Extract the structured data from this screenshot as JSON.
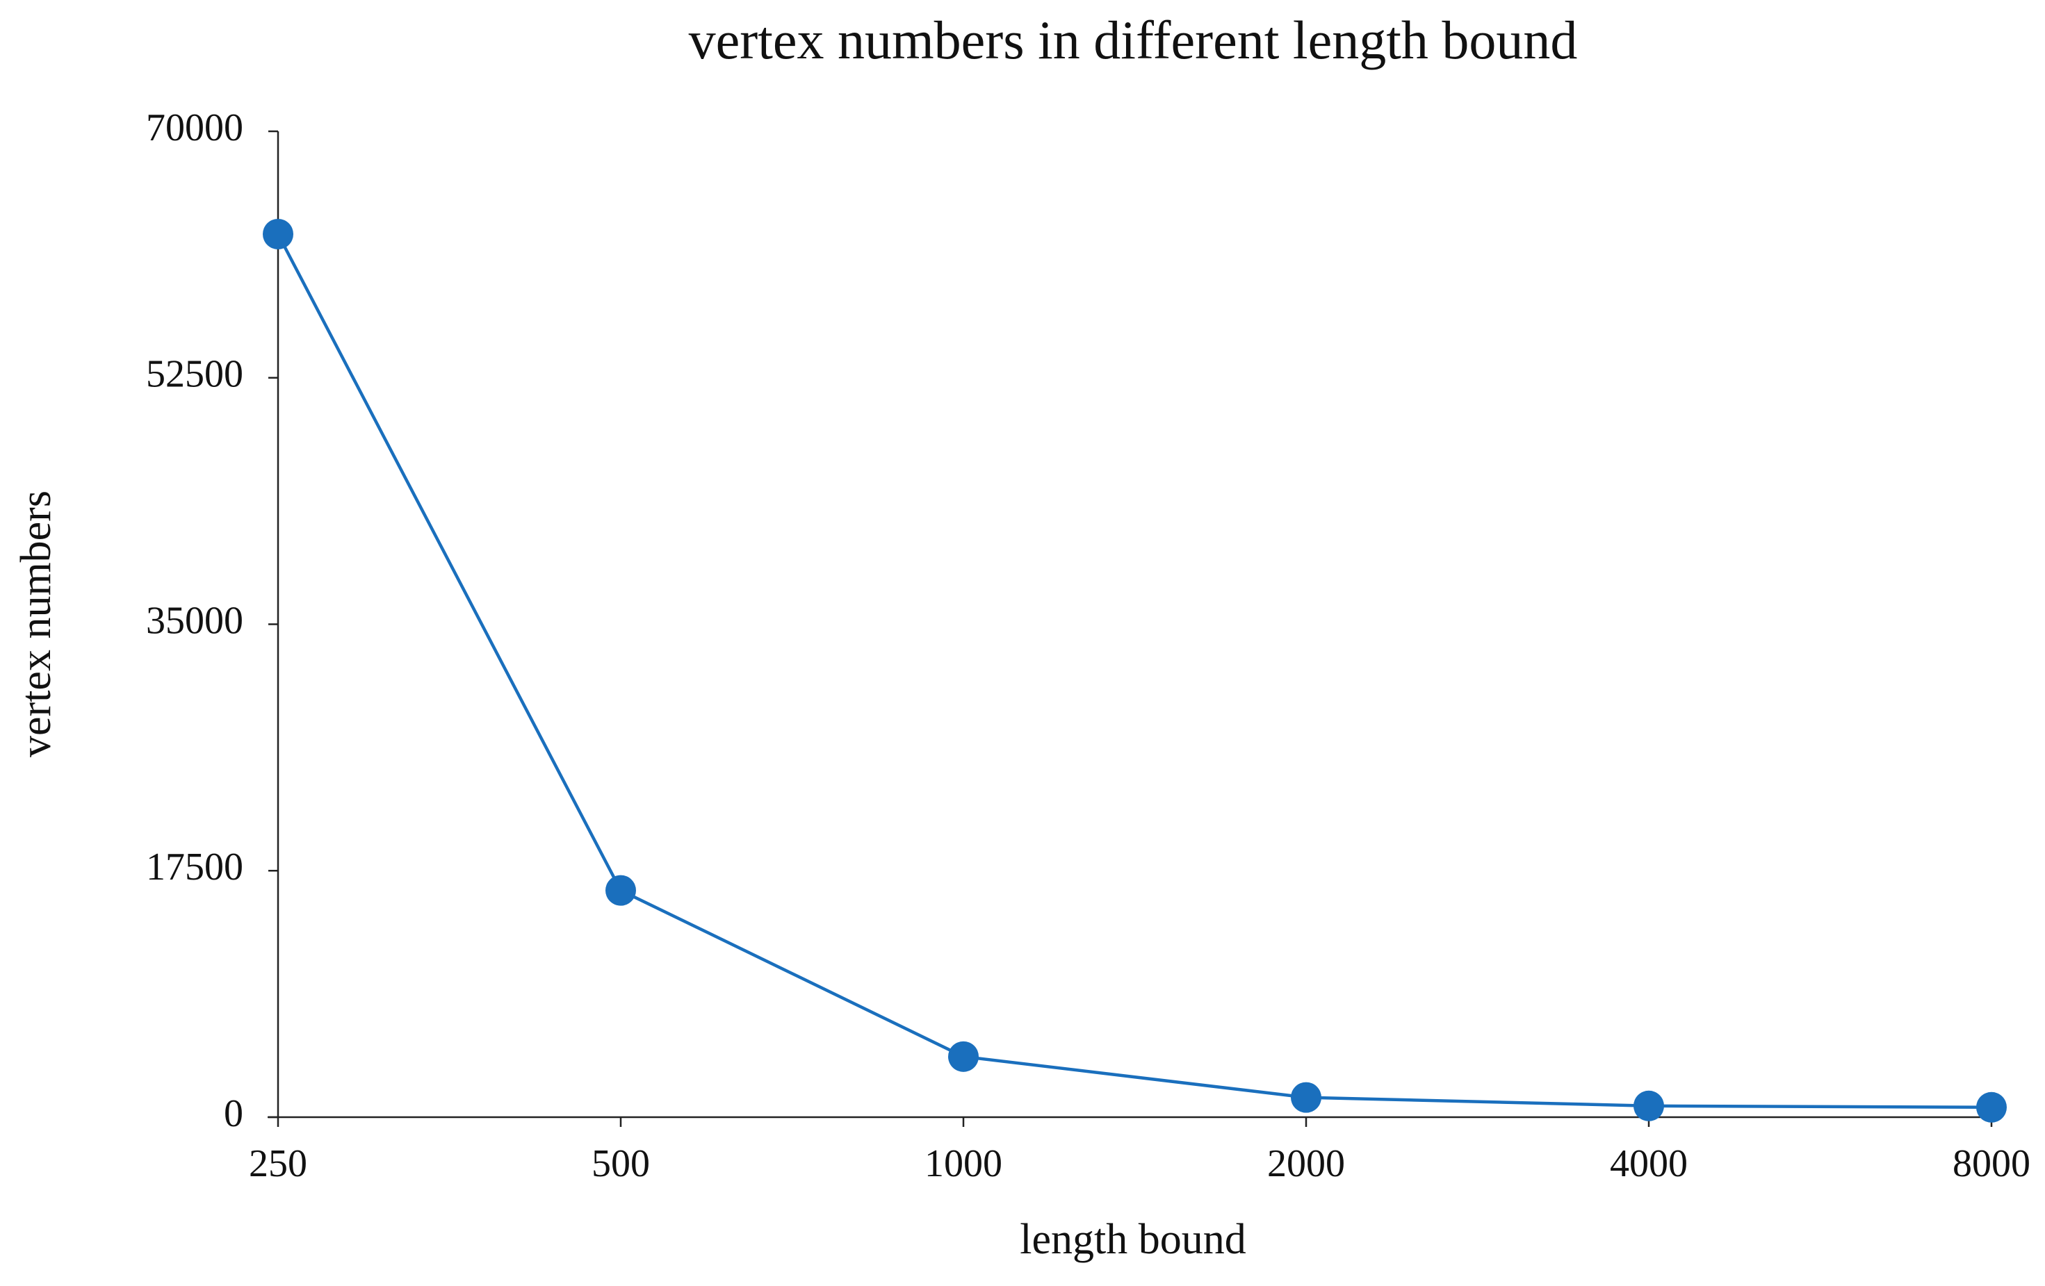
{
  "chart_data": {
    "type": "line",
    "title": "vertex numbers in different length bound",
    "x_label": "length bound",
    "y_label": "vertex numbers",
    "categories": [
      "250",
      "500",
      "1000",
      "2000",
      "4000",
      "8000"
    ],
    "values": [
      62700,
      16100,
      4300,
      1400,
      800,
      700
    ],
    "color": "#1a6fbd",
    "ylim": [
      0,
      70000
    ],
    "yticks": [
      0,
      17500,
      35000,
      52500,
      70000
    ],
    "grid": false
  }
}
